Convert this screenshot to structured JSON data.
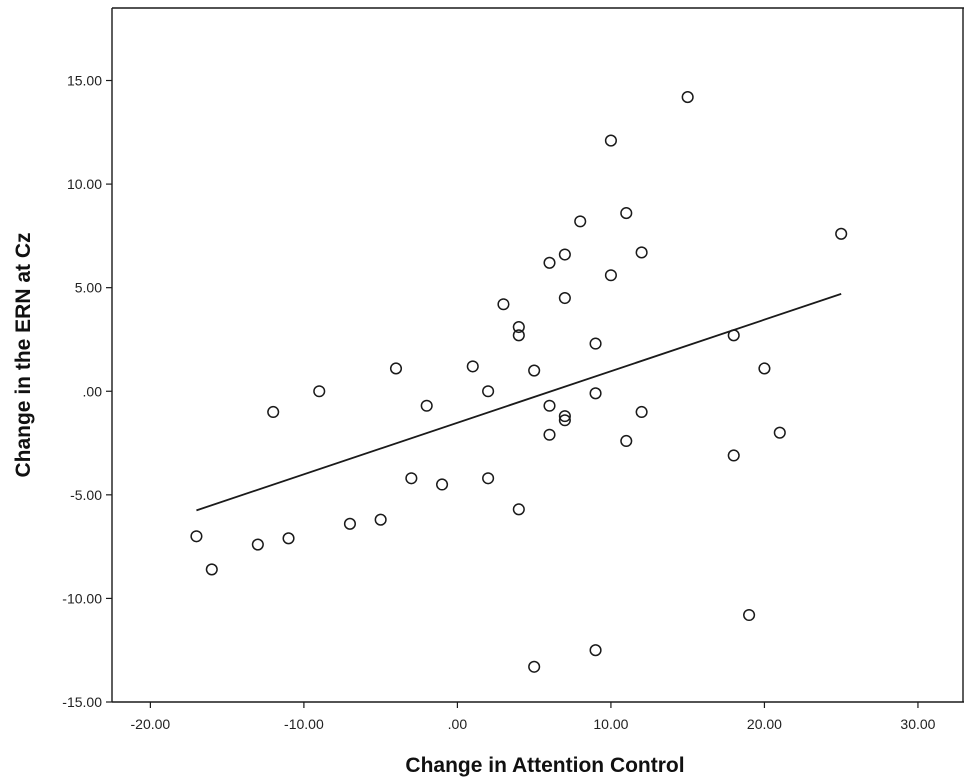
{
  "chart_data": {
    "type": "scatter",
    "title": "",
    "xlabel": "Change in Attention Control",
    "ylabel": "Change in the ERN at Cz",
    "xlim": [
      -22.5,
      33
    ],
    "ylim": [
      -15,
      18.5
    ],
    "x_ticks": [
      {
        "value": -20,
        "label": "-20.00"
      },
      {
        "value": -10,
        "label": "-10.00"
      },
      {
        "value": 0,
        "label": ".00"
      },
      {
        "value": 10,
        "label": "10.00"
      },
      {
        "value": 20,
        "label": "20.00"
      },
      {
        "value": 30,
        "label": "30.00"
      }
    ],
    "y_ticks": [
      {
        "value": -15,
        "label": "-15.00"
      },
      {
        "value": -10,
        "label": "-10.00"
      },
      {
        "value": -5,
        "label": "-5.00"
      },
      {
        "value": 0,
        "label": ".00"
      },
      {
        "value": 5,
        "label": "5.00"
      },
      {
        "value": 10,
        "label": "10.00"
      },
      {
        "value": 15,
        "label": "15.00"
      }
    ],
    "grid": false,
    "marker": "open-circle",
    "marker_color": "#1a1a1a",
    "line_color": "#1a1a1a",
    "points": [
      {
        "x": -17,
        "y": -7.0
      },
      {
        "x": -16,
        "y": -8.6
      },
      {
        "x": -13,
        "y": -7.4
      },
      {
        "x": -12,
        "y": -1.0
      },
      {
        "x": -11,
        "y": -7.1
      },
      {
        "x": -9,
        "y": 0.0
      },
      {
        "x": -7,
        "y": -6.4
      },
      {
        "x": -5,
        "y": -6.2
      },
      {
        "x": -4,
        "y": 1.1
      },
      {
        "x": -3,
        "y": -4.2
      },
      {
        "x": -2,
        "y": -0.7
      },
      {
        "x": -1,
        "y": -4.5
      },
      {
        "x": 1,
        "y": 1.2
      },
      {
        "x": 2,
        "y": 0.0
      },
      {
        "x": 2,
        "y": -4.2
      },
      {
        "x": 3,
        "y": 4.2
      },
      {
        "x": 4,
        "y": 3.1
      },
      {
        "x": 4,
        "y": 2.7
      },
      {
        "x": 4,
        "y": -5.7
      },
      {
        "x": 5,
        "y": 1.0
      },
      {
        "x": 5,
        "y": -13.3
      },
      {
        "x": 6,
        "y": 6.2
      },
      {
        "x": 6,
        "y": -0.7
      },
      {
        "x": 6,
        "y": -2.1
      },
      {
        "x": 7,
        "y": 6.6
      },
      {
        "x": 7,
        "y": 4.5
      },
      {
        "x": 7,
        "y": -1.2
      },
      {
        "x": 7,
        "y": -1.4
      },
      {
        "x": 8,
        "y": 8.2
      },
      {
        "x": 9,
        "y": 2.3
      },
      {
        "x": 9,
        "y": -0.1
      },
      {
        "x": 9,
        "y": -12.5
      },
      {
        "x": 10,
        "y": 12.1
      },
      {
        "x": 10,
        "y": 5.6
      },
      {
        "x": 11,
        "y": 8.6
      },
      {
        "x": 11,
        "y": -2.4
      },
      {
        "x": 12,
        "y": 6.7
      },
      {
        "x": 12,
        "y": -1.0
      },
      {
        "x": 15,
        "y": 14.2
      },
      {
        "x": 18,
        "y": 2.7
      },
      {
        "x": 18,
        "y": -3.1
      },
      {
        "x": 19,
        "y": -10.8
      },
      {
        "x": 20,
        "y": 1.1
      },
      {
        "x": 21,
        "y": -2.0
      },
      {
        "x": 25,
        "y": 7.6
      }
    ],
    "fit_line": {
      "x": [
        -17,
        25
      ],
      "y": [
        -5.75,
        4.7
      ]
    }
  }
}
